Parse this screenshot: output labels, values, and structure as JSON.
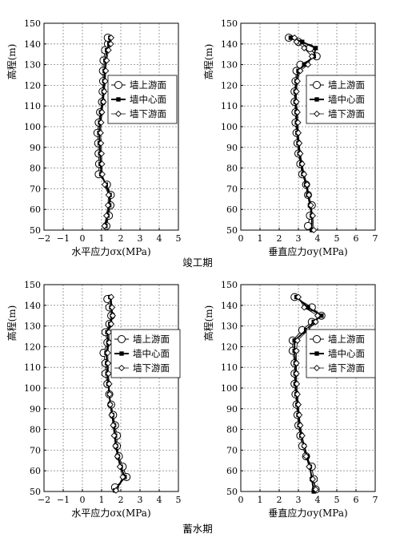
{
  "chart_data": [
    {
      "type": "line",
      "xlabel": "水平应力σx(MPa)",
      "ylabel": "高程(m)",
      "xlim": [
        -2,
        5
      ],
      "ylim": [
        50,
        150
      ],
      "xticks": [
        "−2",
        "−1",
        "0",
        "1",
        "2",
        "3",
        "4",
        "5"
      ],
      "yticks": [
        "50",
        "60",
        "70",
        "80",
        "90",
        "100",
        "110",
        "120",
        "130",
        "140",
        "150"
      ],
      "grid": true,
      "legend_position": "right",
      "series": [
        {
          "name": "墙上游面",
          "marker": "circle",
          "x": [
            1.25,
            1.38,
            1.46,
            1.48,
            1.28,
            0.85,
            0.87,
            0.84,
            0.82,
            0.78,
            0.85,
            0.92,
            1.02,
            1.05,
            1.08,
            1.07,
            1.1,
            1.18,
            1.33,
            1.32
          ],
          "y": [
            52.0,
            57.0,
            62.0,
            67.0,
            72.0,
            77.0,
            82.0,
            87.0,
            92.0,
            97.0,
            102.0,
            107.0,
            112.0,
            117.0,
            122.0,
            127.0,
            132.0,
            137.0,
            140.0,
            143.0
          ]
        },
        {
          "name": "墙中心面",
          "marker": "square",
          "x": [
            1.2,
            1.3,
            1.4,
            1.42,
            1.22,
            0.98,
            0.95,
            0.93,
            0.9,
            0.88,
            0.92,
            0.97,
            1.05,
            1.1,
            1.14,
            1.16,
            1.2,
            1.28,
            1.4,
            1.45
          ],
          "y": [
            52.0,
            57.0,
            62.0,
            67.0,
            72.0,
            77.0,
            82.0,
            87.0,
            92.0,
            97.0,
            102.0,
            107.0,
            112.0,
            117.0,
            122.0,
            127.0,
            132.0,
            137.0,
            140.0,
            143.0
          ]
        },
        {
          "name": "墙下游面",
          "marker": "diamond",
          "x": [
            1.15,
            1.25,
            1.33,
            1.36,
            1.16,
            1.04,
            1.02,
            1.0,
            0.97,
            0.95,
            0.98,
            1.02,
            1.1,
            1.14,
            1.19,
            1.22,
            1.27,
            1.36,
            1.48,
            1.5
          ],
          "y": [
            52.0,
            57.0,
            62.0,
            67.0,
            72.0,
            77.0,
            82.0,
            87.0,
            92.0,
            97.0,
            102.0,
            107.0,
            112.0,
            117.0,
            122.0,
            127.0,
            132.0,
            137.0,
            140.0,
            143.0
          ]
        }
      ]
    },
    {
      "type": "line",
      "xlabel": "垂直应力σy(MPa)",
      "ylabel": "高程(m)",
      "xlim": [
        0,
        7
      ],
      "ylim": [
        50,
        150
      ],
      "xticks": [
        "0",
        "1",
        "2",
        "3",
        "4",
        "5",
        "6",
        "7"
      ],
      "yticks": [
        "50",
        "60",
        "70",
        "80",
        "90",
        "100",
        "110",
        "120",
        "130",
        "140",
        "150"
      ],
      "grid": true,
      "legend_position": "right",
      "series": [
        {
          "name": "墙上游面",
          "marker": "circle",
          "x": [
            3.5,
            3.6,
            3.7,
            3.5,
            3.4,
            3.2,
            3.1,
            3.0,
            2.95,
            2.9,
            2.85,
            2.85,
            2.8,
            2.8,
            2.85,
            2.9,
            3.1,
            3.95,
            3.6,
            3.0,
            2.5
          ],
          "y": [
            52.0,
            57.0,
            62.0,
            67.0,
            72.0,
            77.0,
            82.0,
            87.0,
            92.0,
            97.0,
            102.0,
            107.0,
            112.0,
            117.0,
            122.0,
            127.0,
            130.0,
            134.0,
            138.0,
            141.0,
            143.0
          ]
        },
        {
          "name": "墙中心面",
          "marker": "square",
          "x": [
            3.7,
            3.7,
            3.6,
            3.5,
            3.4,
            3.25,
            3.15,
            3.05,
            3.0,
            2.95,
            2.92,
            2.9,
            2.85,
            2.85,
            2.9,
            3.0,
            3.3,
            3.8,
            3.9,
            3.2,
            2.6
          ],
          "y": [
            50.0,
            57.0,
            62.0,
            67.0,
            72.0,
            77.0,
            82.0,
            87.0,
            92.0,
            97.0,
            102.0,
            107.0,
            112.0,
            117.0,
            122.0,
            127.0,
            130.0,
            134.0,
            138.0,
            141.0,
            143.0
          ]
        },
        {
          "name": "墙下游面",
          "marker": "diamond",
          "x": [
            3.8,
            3.75,
            3.65,
            3.55,
            3.45,
            3.3,
            3.2,
            3.1,
            3.05,
            3.0,
            2.98,
            2.95,
            2.9,
            2.9,
            2.95,
            3.1,
            3.5,
            3.7,
            3.3,
            2.9,
            2.8
          ],
          "y": [
            50.0,
            57.0,
            62.0,
            67.0,
            72.0,
            77.0,
            82.0,
            87.0,
            92.0,
            97.0,
            102.0,
            107.0,
            112.0,
            117.0,
            122.0,
            127.0,
            130.0,
            134.0,
            138.0,
            141.0,
            143.0
          ]
        }
      ]
    },
    {
      "type": "line",
      "xlabel": "水平应力σx(MPa)",
      "ylabel": "高程(m)",
      "xlim": [
        -2,
        5
      ],
      "ylim": [
        50,
        150
      ],
      "xticks": [
        "−2",
        "−1",
        "0",
        "1",
        "2",
        "3",
        "4",
        "5"
      ],
      "yticks": [
        "50",
        "60",
        "70",
        "80",
        "90",
        "100",
        "110",
        "120",
        "130",
        "140",
        "150"
      ],
      "grid": true,
      "legend_position": "right",
      "series": [
        {
          "name": "墙上游面",
          "marker": "circle",
          "x": [
            1.7,
            2.3,
            2.1,
            1.9,
            1.8,
            1.8,
            1.7,
            1.6,
            1.5,
            1.4,
            1.3,
            1.2,
            1.2,
            1.1,
            1.3,
            1.2,
            1.4,
            1.5,
            1.4,
            1.3
          ],
          "y": [
            52.0,
            57.0,
            62.0,
            67.0,
            72.0,
            77.0,
            82.0,
            87.0,
            92.0,
            97.0,
            102.0,
            107.0,
            112.0,
            117.0,
            122.0,
            127.0,
            131.0,
            135.0,
            139.0,
            143.0
          ]
        },
        {
          "name": "墙中心面",
          "marker": "square",
          "x": [
            1.7,
            2.2,
            2.0,
            1.85,
            1.75,
            1.7,
            1.65,
            1.55,
            1.45,
            1.4,
            1.35,
            1.3,
            1.28,
            1.25,
            1.35,
            1.3,
            1.45,
            1.55,
            1.5,
            1.45
          ],
          "y": [
            50.5,
            57.0,
            62.0,
            67.0,
            72.0,
            77.0,
            82.0,
            87.0,
            92.0,
            97.0,
            102.0,
            107.0,
            112.0,
            117.0,
            122.0,
            127.0,
            131.0,
            135.0,
            139.0,
            144.0
          ]
        },
        {
          "name": "墙下游面",
          "marker": "diamond",
          "x": [
            1.75,
            2.1,
            1.95,
            1.82,
            1.72,
            1.65,
            1.6,
            1.52,
            1.45,
            1.42,
            1.4,
            1.36,
            1.34,
            1.32,
            1.4,
            1.38,
            1.5,
            1.58,
            1.55,
            1.5
          ],
          "y": [
            50.5,
            57.0,
            62.0,
            67.0,
            72.0,
            77.0,
            82.0,
            87.0,
            92.0,
            97.0,
            102.0,
            107.0,
            112.0,
            117.0,
            122.0,
            127.0,
            131.0,
            135.0,
            139.0,
            144.0
          ]
        }
      ]
    },
    {
      "type": "line",
      "xlabel": "垂直应力σy(MPa)",
      "ylabel": "高程(m)",
      "xlim": [
        0,
        7
      ],
      "ylim": [
        50,
        150
      ],
      "xticks": [
        "0",
        "1",
        "2",
        "3",
        "4",
        "5",
        "6",
        "7"
      ],
      "yticks": [
        "50",
        "60",
        "70",
        "80",
        "90",
        "100",
        "110",
        "120",
        "130",
        "140",
        "150"
      ],
      "grid": true,
      "legend_position": "right",
      "series": [
        {
          "name": "墙上游面",
          "marker": "circle",
          "x": [
            3.9,
            3.8,
            3.7,
            3.4,
            3.2,
            3.1,
            3.0,
            2.95,
            2.9,
            2.85,
            2.8,
            2.8,
            2.8,
            2.7,
            2.7,
            3.2,
            3.7,
            4.2,
            3.7,
            2.8
          ],
          "y": [
            51.0,
            56.0,
            62.0,
            67.0,
            72.0,
            77.0,
            82.0,
            87.0,
            92.0,
            97.0,
            102.0,
            107.0,
            112.0,
            118.0,
            123.0,
            128.0,
            132.0,
            135.0,
            139.0,
            144.0
          ]
        },
        {
          "name": "墙中心面",
          "marker": "square",
          "x": [
            3.8,
            3.7,
            3.6,
            3.45,
            3.3,
            3.15,
            3.05,
            3.0,
            2.95,
            2.9,
            2.85,
            2.85,
            2.85,
            2.8,
            2.8,
            3.4,
            3.8,
            4.2,
            3.5,
            2.9
          ],
          "y": [
            50.0,
            56.0,
            62.0,
            67.0,
            72.0,
            77.0,
            82.0,
            87.0,
            92.0,
            97.0,
            102.0,
            107.0,
            112.0,
            118.0,
            123.0,
            128.0,
            132.0,
            135.0,
            139.0,
            144.0
          ]
        },
        {
          "name": "墙下游面",
          "marker": "diamond",
          "x": [
            3.9,
            3.75,
            3.55,
            3.4,
            3.3,
            3.2,
            3.1,
            3.05,
            3.0,
            2.95,
            2.92,
            2.9,
            2.9,
            2.9,
            2.95,
            3.5,
            3.9,
            4.0,
            3.3,
            3.0
          ],
          "y": [
            51.0,
            56.0,
            62.0,
            67.0,
            72.0,
            77.0,
            82.0,
            87.0,
            92.0,
            97.0,
            102.0,
            107.0,
            112.0,
            118.0,
            123.0,
            128.0,
            132.0,
            135.0,
            139.0,
            144.0
          ]
        }
      ]
    }
  ],
  "captions": [
    "竣工期",
    "蓄水期"
  ]
}
